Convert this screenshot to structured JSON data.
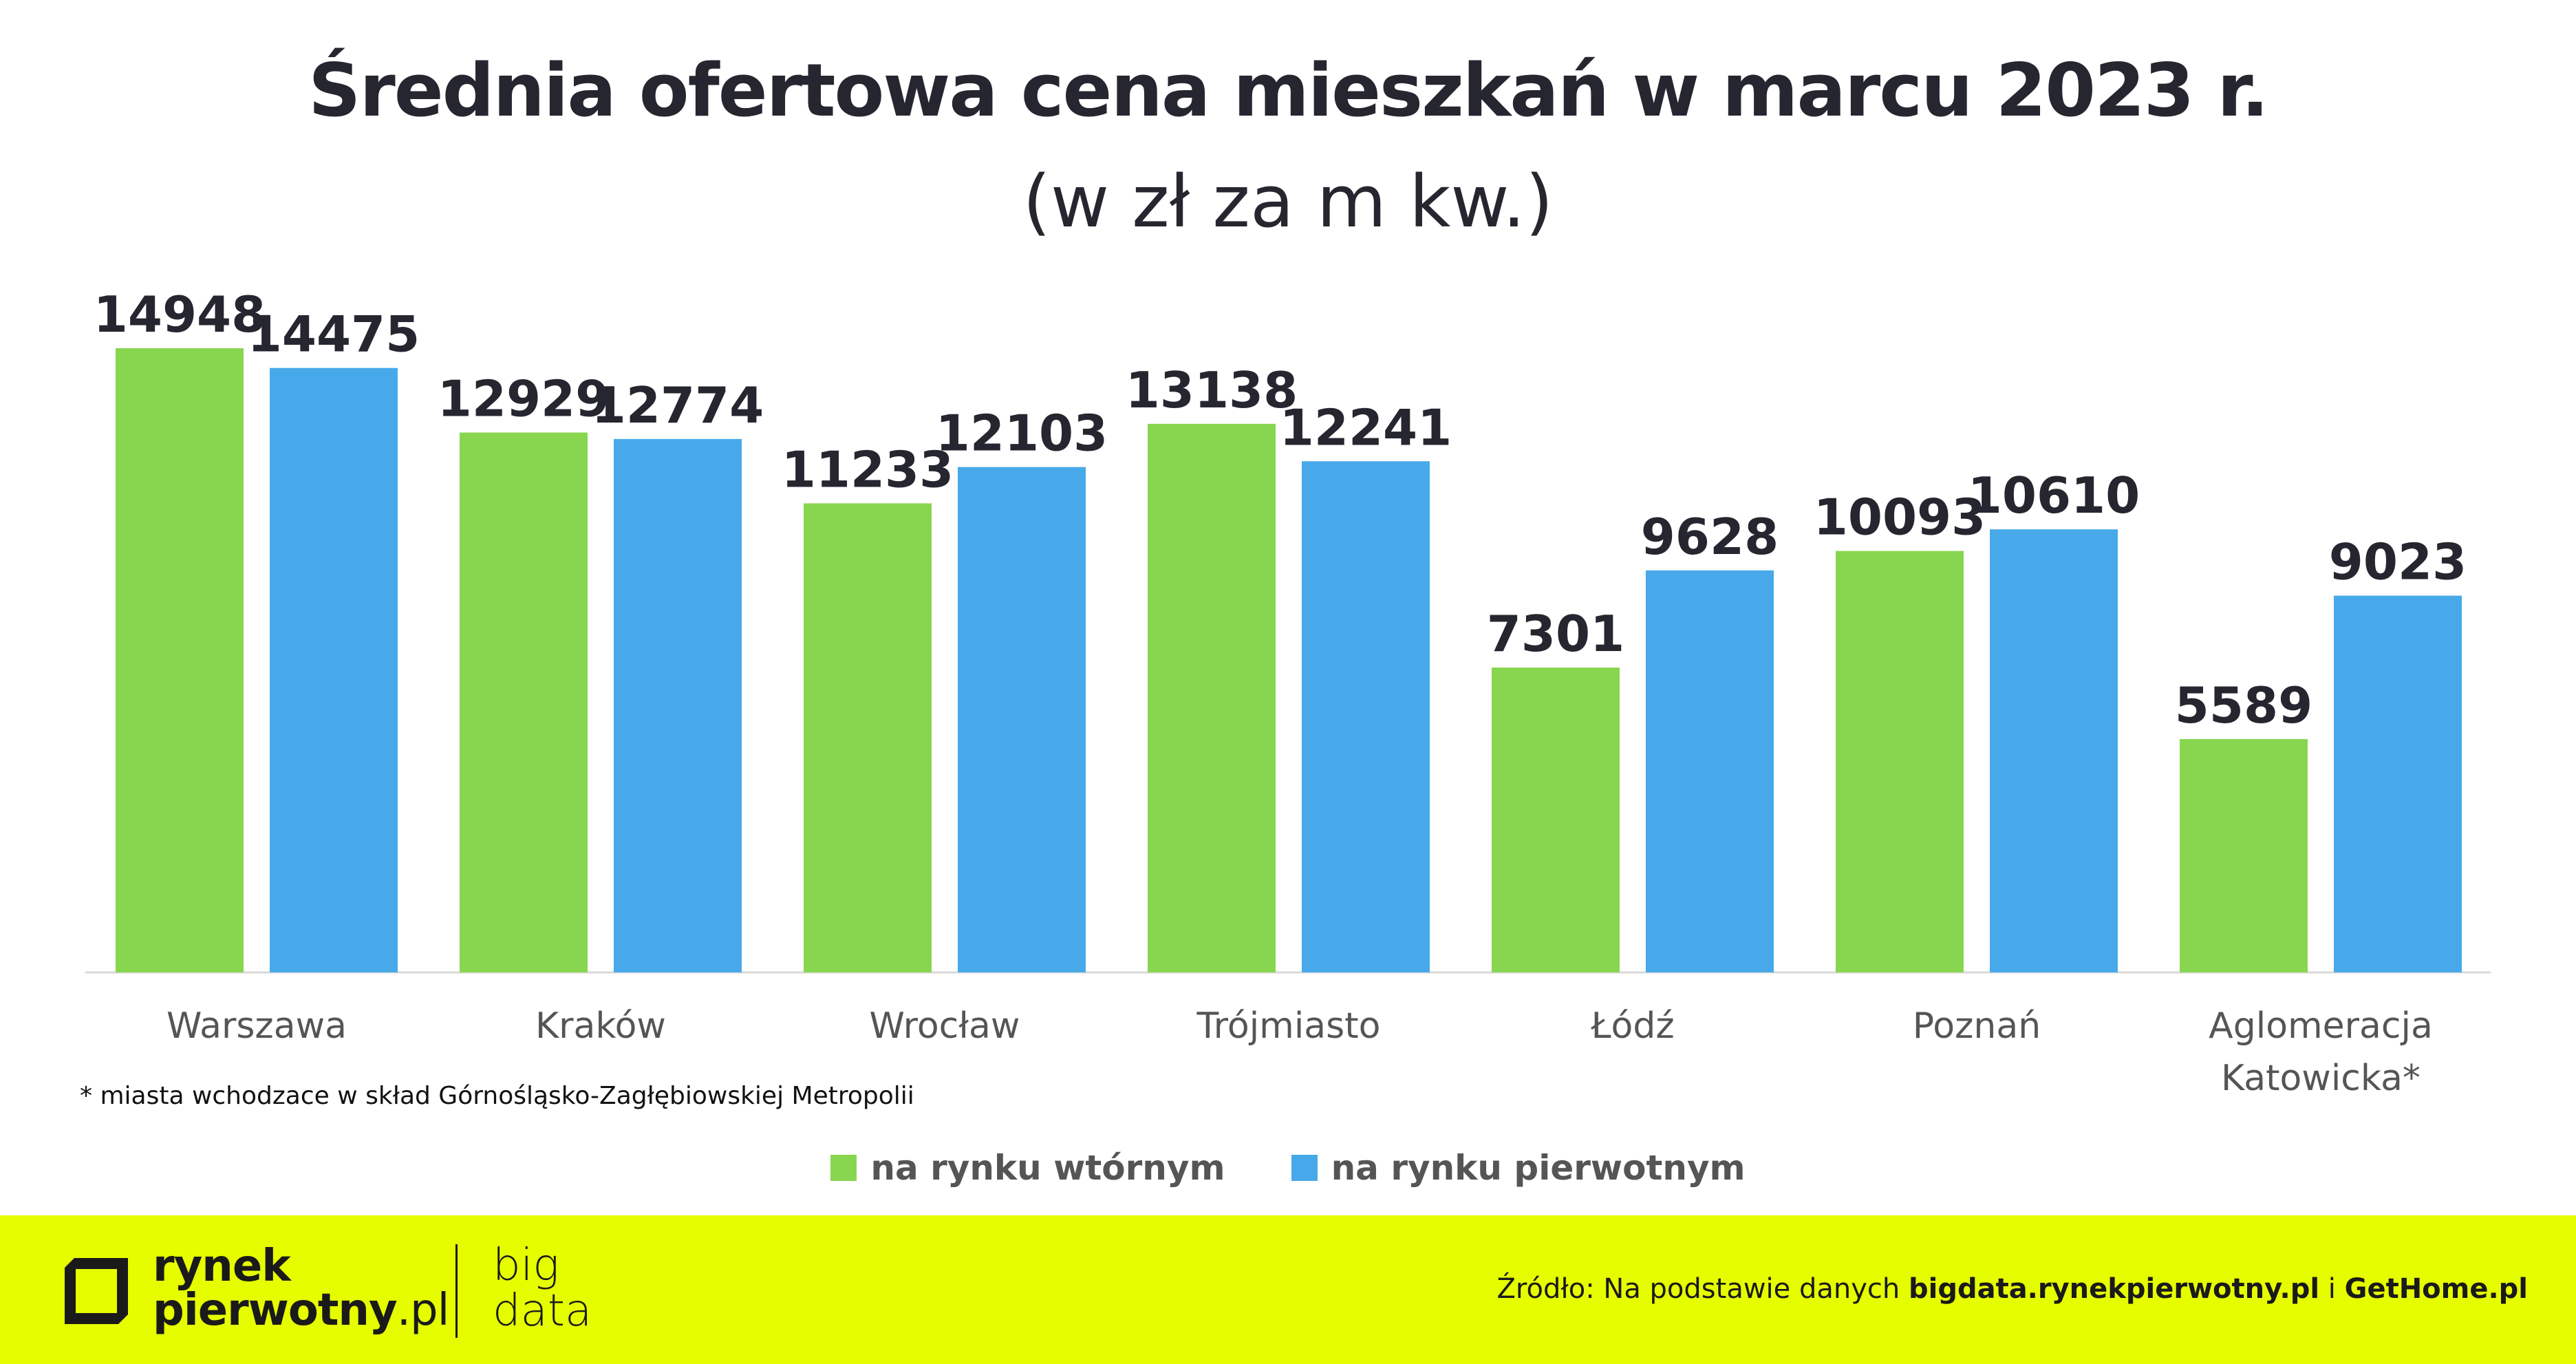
{
  "chart_data": {
    "type": "bar",
    "title": "Średnia ofertowa cena mieszkań w marcu 2023 r.",
    "subtitle": "(w zł za m kw.)",
    "categories": [
      "Warszawa",
      "Kraków",
      "Wrocław",
      "Trójmiasto",
      "Łódź",
      "Poznań",
      "Aglomeracja Katowicka*"
    ],
    "series": [
      {
        "name": "na rynku wtórnym",
        "color": "#88d64f",
        "values": [
          14948,
          12929,
          11233,
          13138,
          7301,
          10093,
          5589
        ]
      },
      {
        "name": "na rynku pierwotnym",
        "color": "#47a9e9",
        "values": [
          14475,
          12774,
          12103,
          12241,
          9628,
          10610,
          9023
        ]
      }
    ],
    "ylim": [
      0,
      15000
    ],
    "grid": false,
    "legend_position": "bottom-center"
  },
  "footnote": "* miasta wchodzace w skład Górnośląsko-Zagłębiowskiej Metropolii",
  "footer": {
    "brand_line1": "rynek",
    "brand_line2_bold": "pierwotny",
    "brand_line2_suffix": ".pl",
    "bigdata_line1": "big",
    "bigdata_line2": "data",
    "source_prefix": "Źródło: Na podstawie danych ",
    "source_link1": "bigdata.rynekpierwotny.pl",
    "source_sep": " i ",
    "source_link2": "GetHome.pl",
    "background": "#e6fd00"
  }
}
